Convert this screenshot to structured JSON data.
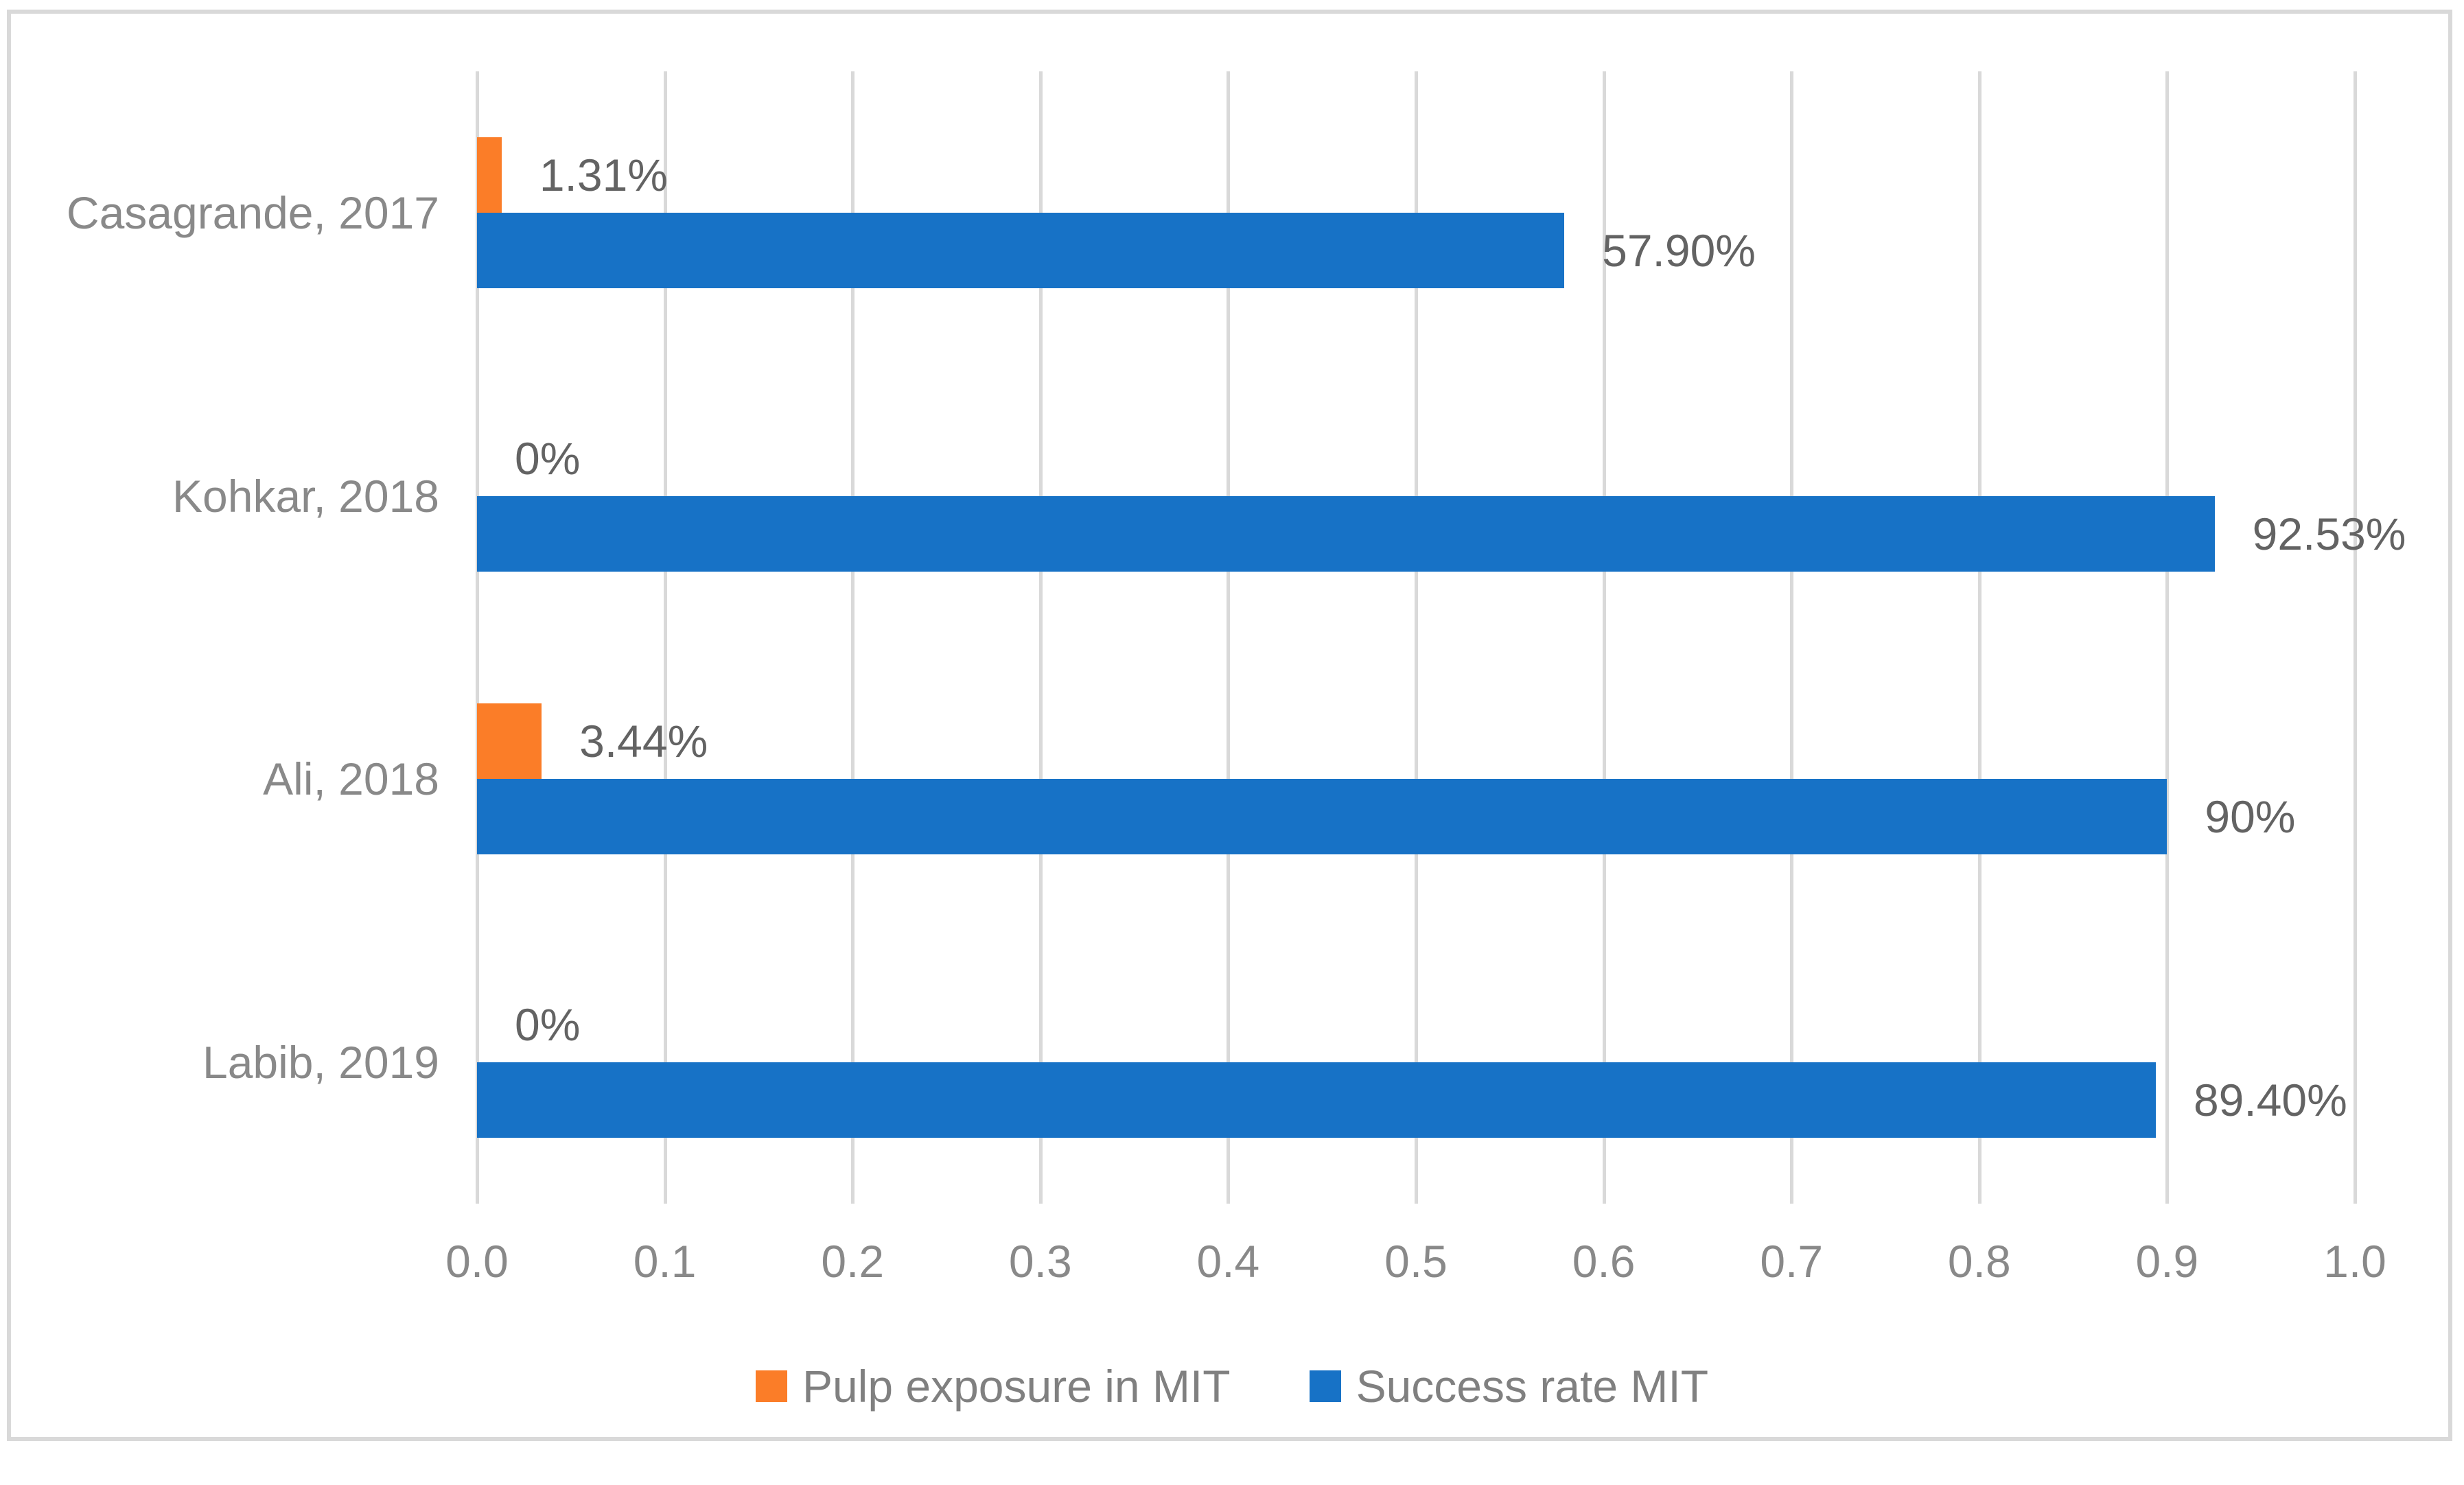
{
  "figure": {
    "background": "#ffffff",
    "border_color": "#d9d9d9"
  },
  "chart_data": {
    "type": "bar",
    "orientation": "horizontal",
    "categories": [
      "Casagrande, 2017",
      "Kohkar, 2018",
      "Ali, 2018",
      "Labib, 2019"
    ],
    "series": [
      {
        "key": "pulp-exposure",
        "name": "Pulp exposure in MIT",
        "color": "#FB7D28",
        "values": [
          0.0131,
          0,
          0.0344,
          0
        ],
        "labels": [
          "1.31%",
          "0%",
          "3.44%",
          "0%"
        ]
      },
      {
        "key": "success-rate",
        "name": "Success rate MIT",
        "color": "#1772C6",
        "values": [
          0.579,
          0.9253,
          0.9,
          0.894
        ],
        "labels": [
          "57.90%",
          "92.53%",
          "90%",
          "89.40%"
        ]
      }
    ],
    "xlim": [
      0,
      1
    ],
    "x_ticks": [
      "0.0",
      "0.1",
      "0.2",
      "0.3",
      "0.4",
      "0.5",
      "0.6",
      "0.7",
      "0.8",
      "0.9",
      "1.0"
    ],
    "grid": "vertical",
    "gridline_color": "#d9d9d9",
    "legend_position": "bottom",
    "data_label_color": "#636363",
    "axis_text_color": "#898989",
    "legend_text_color": "#808080"
  }
}
